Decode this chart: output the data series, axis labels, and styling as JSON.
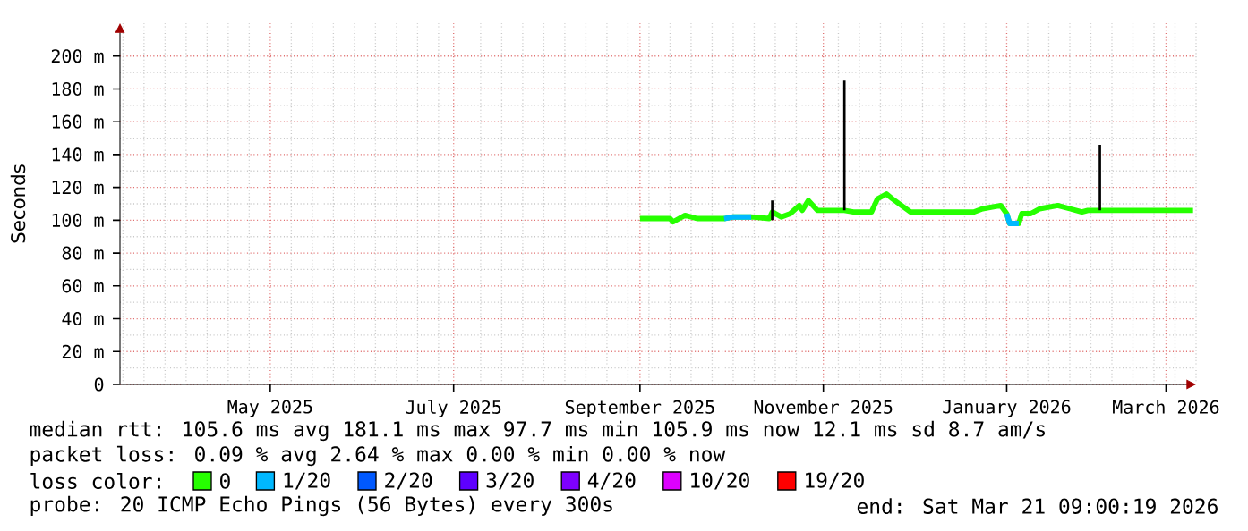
{
  "chart_data": {
    "type": "line",
    "ylabel": "Seconds",
    "xlim": [
      "2025-03-27",
      "2026-03-20"
    ],
    "ylim": [
      0,
      220
    ],
    "xticks": [
      {
        "value": "2025-05-16",
        "label": "May 2025"
      },
      {
        "value": "2025-07-16",
        "label": "July 2025"
      },
      {
        "value": "2025-09-16",
        "label": "September 2025"
      },
      {
        "value": "2025-11-16",
        "label": "November 2025"
      },
      {
        "value": "2026-01-16",
        "label": "January 2026"
      },
      {
        "value": "2026-03-10",
        "label": "March 2026"
      }
    ],
    "yticks": [
      {
        "value": 0,
        "label": "0"
      },
      {
        "value": 20,
        "label": "20 m"
      },
      {
        "value": 40,
        "label": "40 m"
      },
      {
        "value": 60,
        "label": "60 m"
      },
      {
        "value": 80,
        "label": "80 m"
      },
      {
        "value": 100,
        "label": "100 m"
      },
      {
        "value": 120,
        "label": "120 m"
      },
      {
        "value": 140,
        "label": "140 m"
      },
      {
        "value": 160,
        "label": "160 m"
      },
      {
        "value": 180,
        "label": "180 m"
      },
      {
        "value": 200,
        "label": "200 m"
      }
    ],
    "grid": true,
    "legend": "bottom",
    "legend_title": "loss color:",
    "series": [
      {
        "name": "0",
        "color": "#26ff00",
        "x": [
          "2025-09-16",
          "2025-09-26",
          "2025-09-27",
          "2025-10-01",
          "2025-10-05",
          "2025-10-14",
          "2025-10-17",
          "2025-10-23",
          "2025-10-29",
          "2025-10-30",
          "2025-11-02",
          "2025-11-05",
          "2025-11-08",
          "2025-11-09",
          "2025-11-11",
          "2025-11-14",
          "2025-11-21",
          "2025-11-23",
          "2025-11-26",
          "2025-12-02",
          "2025-12-04",
          "2025-12-07",
          "2025-12-09",
          "2025-12-12",
          "2025-12-15",
          "2025-12-21",
          "2026-01-05",
          "2026-01-08",
          "2026-01-14",
          "2026-01-16",
          "2026-01-17",
          "2026-01-20",
          "2026-01-21",
          "2026-01-24",
          "2026-01-27",
          "2026-02-02",
          "2026-02-06",
          "2026-02-10",
          "2026-02-12",
          "2026-02-16",
          "2026-02-18",
          "2026-03-02",
          "2026-03-19"
        ],
        "values": [
          101,
          101,
          99,
          103,
          101,
          101,
          102,
          102,
          101,
          105,
          102,
          104,
          109,
          106,
          112,
          106,
          106,
          106,
          105,
          105,
          113,
          116,
          113,
          109,
          105,
          105,
          105,
          107,
          109,
          104,
          98,
          98,
          104,
          104,
          107,
          109,
          107,
          105,
          106,
          106,
          106,
          106,
          106
        ]
      },
      {
        "name": "1/20",
        "color": "#00b8ff",
        "x": [
          "2025-10-14",
          "2025-10-17",
          "2025-10-23",
          "2025-10-25",
          "2026-01-16",
          "2026-01-17",
          "2026-01-20"
        ],
        "values": [
          101,
          102,
          102,
          null,
          104,
          98,
          98
        ]
      },
      {
        "name": "2/20",
        "color": "#0059ff"
      },
      {
        "name": "3/20",
        "color": "#5e00ff"
      },
      {
        "name": "4/20",
        "color": "#7e00ff"
      },
      {
        "name": "10/20",
        "color": "#dd00ff"
      },
      {
        "name": "19/20",
        "color": "#ff0000"
      },
      {
        "color": "#000000",
        "x": [
          "2025-10-30",
          "2025-10-30",
          "2025-11-01",
          "2025-11-23",
          "2025-11-23",
          "2025-12-01",
          "2026-02-16",
          "2026-02-16"
        ],
        "values": [
          100,
          112,
          null,
          106,
          185,
          null,
          106,
          146
        ]
      }
    ],
    "annotations": [
      "median rtt:  105.6 ms avg  181.1 ms max  97.7 ms min  105.9 ms now  12.1 ms sd  8.7   am/s",
      "packet loss: 0.09 % avg  2.64 % max  0.00 % min  0.00 % now",
      "probe:       20 ICMP Echo Pings (56 Bytes) every 300s",
      "end: Sat Mar 21 09:00:19 2026"
    ]
  }
}
